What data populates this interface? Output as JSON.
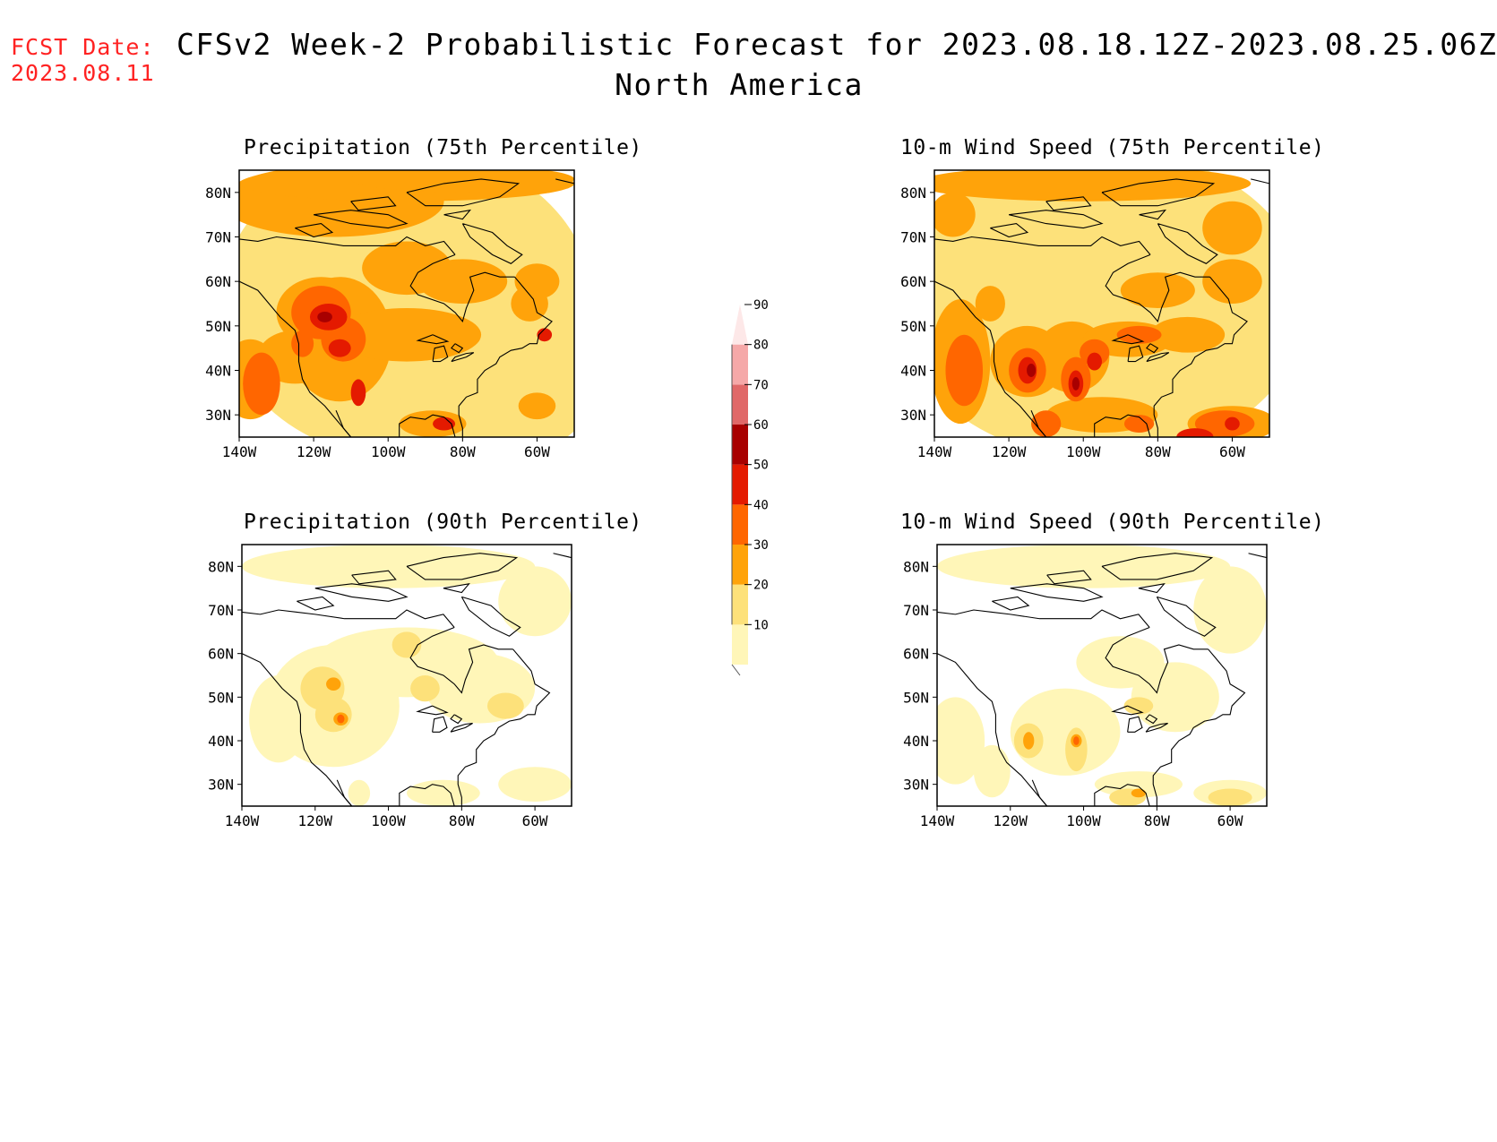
{
  "header": {
    "fcst_label": "FCST Date:",
    "fcst_date": "2023.08.11",
    "title": "CFSv2 Week-2 Probabilistic Forecast for 2023.08.18.12Z-2023.08.25.06Z",
    "subtitle": "North America"
  },
  "panels": [
    {
      "id": "p75",
      "title": "Precipitation (75th Percentile)"
    },
    {
      "id": "w75",
      "title": "10-m Wind Speed (75th Percentile)"
    },
    {
      "id": "p90",
      "title": "Precipitation (90th Percentile)"
    },
    {
      "id": "w90",
      "title": "10-m Wind Speed (90th Percentile)"
    }
  ],
  "axes": {
    "lat_labels": [
      "80N",
      "70N",
      "60N",
      "50N",
      "40N",
      "30N"
    ],
    "lat_values": [
      80,
      70,
      60,
      50,
      40,
      30
    ],
    "lon_labels": [
      "140W",
      "120W",
      "100W",
      "80W",
      "60W"
    ],
    "lon_values": [
      -140,
      -120,
      -100,
      -80,
      -60
    ],
    "lon_range": [
      -140,
      -50
    ],
    "lat_range": [
      25,
      85
    ]
  },
  "colorbar": {
    "levels": [
      "10",
      "20",
      "30",
      "40",
      "50",
      "60",
      "70",
      "80",
      "90"
    ],
    "colors": [
      "#fff6b8",
      "#fde17a",
      "#ffa30a",
      "#ff6600",
      "#e41a00",
      "#a80000",
      "#e06868",
      "#f5a8a8",
      "#fde8e8"
    ]
  }
}
